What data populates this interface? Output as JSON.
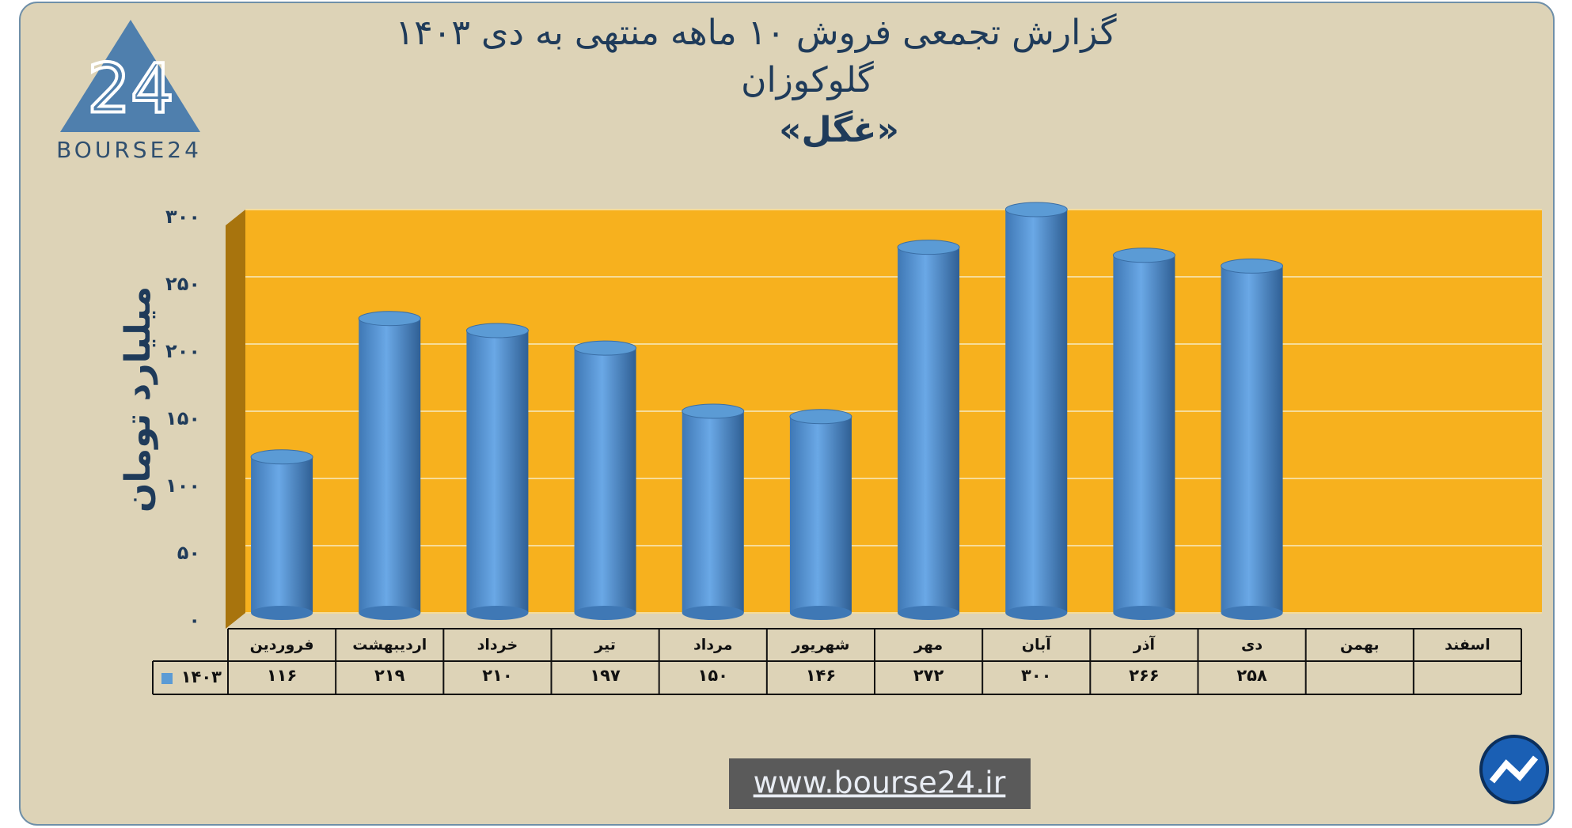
{
  "logo_text": "BOURSE24",
  "logo_mark": "24",
  "website": "www.bourse24.ir",
  "chart_data": {
    "type": "bar",
    "title": "گزارش تجمعی فروش ۱۰ ماهه منتهی به دی ۱۴۰۳",
    "subtitle": "گلوکوزان",
    "subtitle2": "«غگل»",
    "y_label": "میلیارد تومان",
    "categories": [
      "فروردین",
      "اردیبهشت",
      "خرداد",
      "تیر",
      "مرداد",
      "شهریور",
      "مهر",
      "آبان",
      "آذر",
      "دی",
      "بهمن",
      "اسفند"
    ],
    "series": [
      {
        "name": "۱۴۰۳",
        "color": "#5b9bd5",
        "values": [
          116,
          219,
          210,
          197,
          150,
          146,
          272,
          300,
          266,
          258,
          null,
          null
        ],
        "value_labels": [
          "۱۱۶",
          "۲۱۹",
          "۲۱۰",
          "۱۹۷",
          "۱۵۰",
          "۱۴۶",
          "۲۷۲",
          "۳۰۰",
          "۲۶۶",
          "۲۵۸",
          null,
          null
        ]
      }
    ],
    "ylim": [
      0,
      300
    ],
    "yticks": [
      {
        "value": 0,
        "label": "۰"
      },
      {
        "value": 50,
        "label": "۵۰"
      },
      {
        "value": 100,
        "label": "۱۰۰"
      },
      {
        "value": 150,
        "label": "۱۵۰"
      },
      {
        "value": 200,
        "label": "۲۰۰"
      },
      {
        "value": 250,
        "label": "۲۵۰"
      },
      {
        "value": 300,
        "label": "۳۰۰"
      }
    ],
    "grid": true,
    "plot_color": "#f7b11e"
  }
}
